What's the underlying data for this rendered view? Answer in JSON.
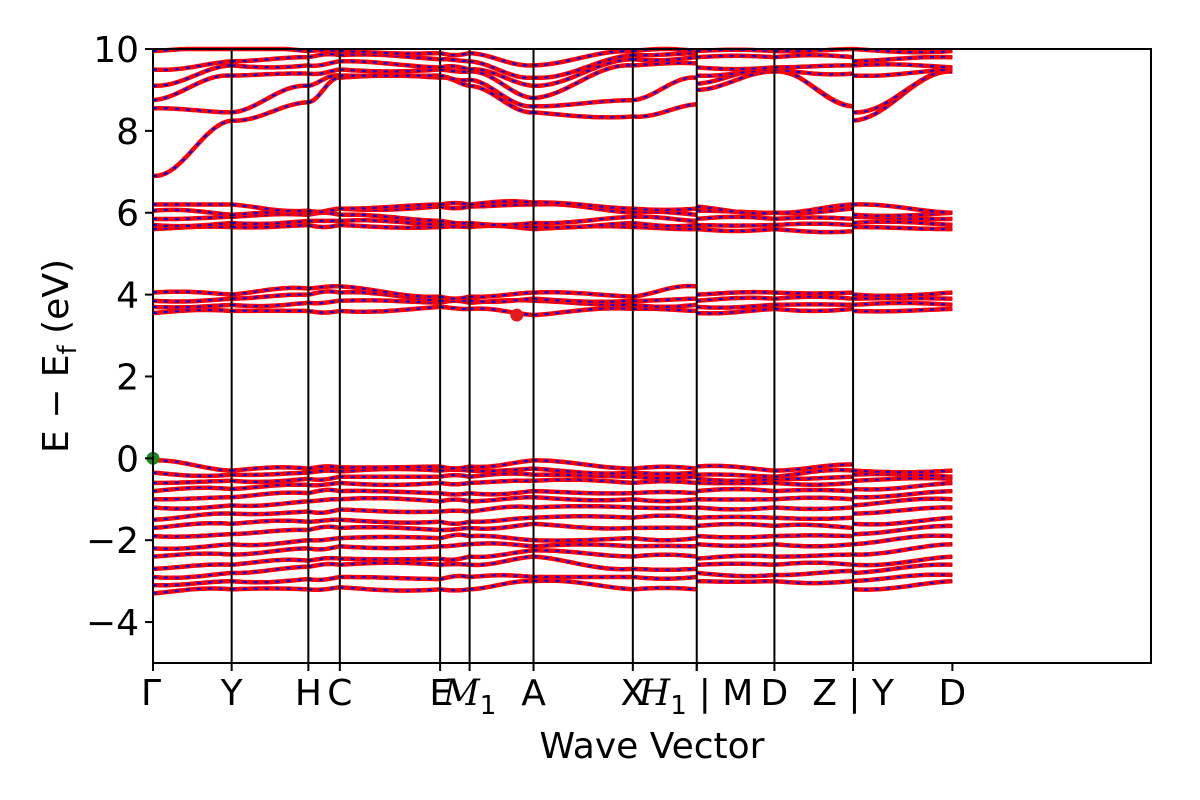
{
  "chart_data": {
    "type": "line",
    "title": "",
    "xlabel": "Wave Vector",
    "ylabel": "E − E_f (eV)",
    "ylabel_parts": {
      "main": "E − E",
      "sub": "f",
      "unit": " (eV)"
    },
    "ylim": [
      -5,
      10
    ],
    "yticks": [
      -4,
      -2,
      0,
      2,
      4,
      6,
      8,
      10
    ],
    "ytick_labels": [
      "−4",
      "−2",
      "0",
      "2",
      "4",
      "6",
      "8",
      "10"
    ],
    "xlim": [
      0,
      10.15
    ],
    "kpoints": [
      {
        "label": "Γ",
        "x": 0.0
      },
      {
        "label": "Y",
        "x": 0.8
      },
      {
        "label": "H",
        "x": 1.58
      },
      {
        "label": "C",
        "x": 1.9
      },
      {
        "label": "E",
        "x": 2.92
      },
      {
        "label": "M",
        "sub": "1",
        "x": 3.22
      },
      {
        "label": "A",
        "x": 3.87
      },
      {
        "label": "X",
        "x": 4.88
      },
      {
        "label": "H",
        "sub": "1",
        "x": 5.53
      },
      {
        "label": "| M",
        "x": 5.53
      },
      {
        "label": "D",
        "x": 6.32
      },
      {
        "label": "Z | Y",
        "x": 7.12
      },
      {
        "label": "D",
        "x": 8.13
      }
    ],
    "vertical_lines_x": [
      0.8,
      1.58,
      1.9,
      2.92,
      3.22,
      3.87,
      4.88,
      5.53,
      6.32,
      7.12
    ],
    "segments": [
      {
        "x0": 0.0,
        "x1": 0.8,
        "start": [
          -3.3,
          -3.1,
          -2.9,
          -2.7,
          -2.4,
          -2.2,
          -1.9,
          -1.7,
          -1.5,
          -1.2,
          -1.0,
          -0.8,
          -0.6,
          -0.35,
          -0.05,
          3.55,
          3.7,
          3.85,
          4.05,
          5.6,
          5.7,
          5.85,
          6.05,
          6.2,
          6.9,
          8.55,
          8.75,
          9.1,
          9.5,
          9.95
        ],
        "end": [
          -3.2,
          -3.0,
          -2.8,
          -2.6,
          -2.35,
          -2.1,
          -1.85,
          -1.6,
          -1.35,
          -1.15,
          -0.95,
          -0.75,
          -0.55,
          -0.4,
          -0.3,
          3.6,
          3.75,
          3.9,
          4.0,
          5.65,
          5.75,
          5.9,
          5.95,
          6.2,
          8.25,
          8.45,
          9.35,
          9.6,
          9.7,
          10.0
        ]
      },
      {
        "x0": 0.8,
        "x1": 1.58,
        "start": [
          -3.2,
          -3.0,
          -2.8,
          -2.6,
          -2.35,
          -2.1,
          -1.85,
          -1.6,
          -1.35,
          -1.15,
          -0.95,
          -0.75,
          -0.55,
          -0.4,
          -0.3,
          3.6,
          3.75,
          3.9,
          4.0,
          5.65,
          5.75,
          5.9,
          5.95,
          6.2,
          8.25,
          8.45,
          9.35,
          9.6,
          9.7,
          10.0
        ],
        "end": [
          -3.2,
          -2.95,
          -2.65,
          -2.5,
          -2.2,
          -2.0,
          -1.75,
          -1.55,
          -1.3,
          -1.05,
          -0.85,
          -0.65,
          -0.5,
          -0.35,
          -0.25,
          3.6,
          3.8,
          4.0,
          4.15,
          5.7,
          5.8,
          5.95,
          6.0,
          6.05,
          8.7,
          9.1,
          9.4,
          9.6,
          9.8,
          9.95
        ]
      },
      {
        "x0": 1.58,
        "x1": 1.9,
        "start": [
          -3.2,
          -2.95,
          -2.65,
          -2.5,
          -2.2,
          -2.0,
          -1.75,
          -1.55,
          -1.3,
          -1.05,
          -0.85,
          -0.65,
          -0.5,
          -0.35,
          -0.25,
          3.6,
          3.8,
          4.0,
          4.15,
          5.7,
          5.8,
          5.95,
          6.0,
          6.05,
          8.7,
          9.1,
          9.4,
          9.6,
          9.8,
          9.95
        ],
        "end": [
          -3.15,
          -2.9,
          -2.6,
          -2.45,
          -2.15,
          -1.95,
          -1.7,
          -1.5,
          -1.25,
          -1.0,
          -0.8,
          -0.6,
          -0.45,
          -0.32,
          -0.22,
          3.6,
          3.85,
          4.05,
          4.2,
          5.7,
          5.8,
          5.95,
          6.1,
          6.1,
          9.3,
          9.35,
          9.5,
          9.7,
          9.85,
          9.95
        ]
      },
      {
        "x0": 1.9,
        "x1": 2.92,
        "start": [
          -3.15,
          -2.9,
          -2.6,
          -2.45,
          -2.15,
          -1.95,
          -1.7,
          -1.5,
          -1.25,
          -1.0,
          -0.8,
          -0.6,
          -0.45,
          -0.32,
          -0.22,
          3.6,
          3.85,
          4.05,
          4.2,
          5.7,
          5.8,
          5.95,
          6.1,
          6.1,
          9.3,
          9.35,
          9.5,
          9.7,
          9.85,
          9.95
        ],
        "end": [
          -3.2,
          -2.95,
          -2.6,
          -2.45,
          -2.15,
          -1.95,
          -1.75,
          -1.55,
          -1.3,
          -1.05,
          -0.85,
          -0.6,
          -0.45,
          -0.3,
          -0.2,
          3.7,
          3.8,
          3.85,
          3.95,
          5.65,
          5.7,
          5.8,
          6.15,
          6.2,
          9.3,
          9.35,
          9.5,
          9.55,
          9.75,
          9.9
        ]
      },
      {
        "x0": 2.92,
        "x1": 3.22,
        "start": [
          -3.2,
          -2.95,
          -2.6,
          -2.45,
          -2.15,
          -1.95,
          -1.75,
          -1.55,
          -1.3,
          -1.05,
          -0.85,
          -0.6,
          -0.45,
          -0.3,
          -0.2,
          3.7,
          3.8,
          3.85,
          3.95,
          5.65,
          5.7,
          5.8,
          6.15,
          6.2,
          9.3,
          9.35,
          9.5,
          9.55,
          9.75,
          9.9
        ],
        "end": [
          -3.2,
          -2.9,
          -2.6,
          -2.4,
          -2.1,
          -1.9,
          -1.7,
          -1.55,
          -1.3,
          -1.05,
          -0.85,
          -0.6,
          -0.45,
          -0.3,
          -0.2,
          3.65,
          3.8,
          3.85,
          3.95,
          5.65,
          5.7,
          5.75,
          6.15,
          6.2,
          9.1,
          9.25,
          9.45,
          9.5,
          9.7,
          9.9
        ]
      },
      {
        "x0": 3.22,
        "x1": 3.87,
        "start": [
          -3.2,
          -2.9,
          -2.6,
          -2.4,
          -2.1,
          -1.9,
          -1.7,
          -1.55,
          -1.3,
          -1.05,
          -0.85,
          -0.6,
          -0.45,
          -0.3,
          -0.2,
          3.65,
          3.8,
          3.85,
          3.95,
          5.65,
          5.7,
          5.75,
          6.15,
          6.2,
          9.1,
          9.25,
          9.45,
          9.5,
          9.7,
          9.9
        ],
        "end": [
          -3.0,
          -2.9,
          -2.4,
          -2.25,
          -2.15,
          -2.0,
          -1.6,
          -1.45,
          -1.2,
          -0.95,
          -0.8,
          -0.55,
          -0.4,
          -0.25,
          -0.05,
          3.5,
          3.85,
          3.9,
          4.05,
          5.6,
          5.65,
          5.75,
          6.2,
          6.25,
          8.45,
          8.6,
          8.8,
          9.1,
          9.3,
          9.6
        ]
      },
      {
        "x0": 3.87,
        "x1": 4.88,
        "start": [
          -3.0,
          -2.9,
          -2.4,
          -2.25,
          -2.15,
          -2.0,
          -1.6,
          -1.45,
          -1.2,
          -0.95,
          -0.8,
          -0.55,
          -0.4,
          -0.25,
          -0.05,
          3.5,
          3.85,
          3.9,
          4.05,
          5.6,
          5.65,
          5.75,
          6.2,
          6.25,
          8.45,
          8.6,
          8.8,
          9.1,
          9.3,
          9.6
        ],
        "end": [
          -3.2,
          -2.9,
          -2.7,
          -2.4,
          -2.15,
          -1.95,
          -1.7,
          -1.45,
          -1.2,
          -1.0,
          -0.85,
          -0.6,
          -0.45,
          -0.35,
          -0.25,
          3.65,
          3.75,
          3.85,
          3.95,
          5.65,
          5.75,
          5.9,
          6.0,
          6.1,
          8.35,
          8.75,
          9.6,
          9.75,
          9.85,
          9.95
        ]
      },
      {
        "x0": 4.88,
        "x1": 5.53,
        "start": [
          -3.2,
          -2.9,
          -2.7,
          -2.4,
          -2.15,
          -1.95,
          -1.7,
          -1.45,
          -1.2,
          -1.0,
          -0.85,
          -0.6,
          -0.45,
          -0.35,
          -0.25,
          3.65,
          3.75,
          3.85,
          3.95,
          5.65,
          5.75,
          5.9,
          6.0,
          6.1,
          8.35,
          8.75,
          9.6,
          9.75,
          9.85,
          9.95
        ],
        "end": [
          -3.2,
          -2.9,
          -2.7,
          -2.4,
          -2.15,
          -1.95,
          -1.7,
          -1.45,
          -1.2,
          -1.0,
          -0.85,
          -0.6,
          -0.45,
          -0.35,
          -0.25,
          3.6,
          3.75,
          3.9,
          4.2,
          5.6,
          5.7,
          5.8,
          5.95,
          6.1,
          8.65,
          9.3,
          9.65,
          9.8,
          9.9,
          9.95
        ]
      },
      {
        "x0": 5.53,
        "x1": 6.32,
        "start": [
          -3.0,
          -2.8,
          -2.6,
          -2.45,
          -2.1,
          -1.9,
          -1.65,
          -1.45,
          -1.2,
          -1.0,
          -0.8,
          -0.6,
          -0.5,
          -0.4,
          -0.2,
          3.55,
          3.7,
          3.85,
          4.0,
          5.6,
          5.7,
          5.85,
          6.05,
          6.15,
          9.0,
          9.15,
          9.35,
          9.55,
          9.8,
          9.95
        ],
        "end": [
          -3.0,
          -2.85,
          -2.6,
          -2.4,
          -2.1,
          -1.9,
          -1.65,
          -1.45,
          -1.2,
          -1.0,
          -0.8,
          -0.6,
          -0.5,
          -0.45,
          -0.3,
          3.65,
          3.75,
          3.9,
          4.05,
          5.6,
          5.7,
          5.85,
          6.0,
          6.0,
          9.45,
          9.5,
          9.5,
          9.55,
          9.8,
          9.95
        ]
      },
      {
        "x0": 6.32,
        "x1": 7.12,
        "start": [
          -3.0,
          -2.85,
          -2.6,
          -2.4,
          -2.1,
          -1.9,
          -1.65,
          -1.45,
          -1.2,
          -1.0,
          -0.8,
          -0.6,
          -0.5,
          -0.45,
          -0.3,
          3.65,
          3.75,
          3.9,
          4.05,
          5.6,
          5.7,
          5.85,
          6.0,
          6.0,
          9.45,
          9.5,
          9.5,
          9.55,
          9.8,
          9.95
        ],
        "end": [
          -3.0,
          -2.75,
          -2.6,
          -2.35,
          -2.1,
          -1.9,
          -1.7,
          -1.45,
          -1.2,
          -1.0,
          -0.8,
          -0.6,
          -0.45,
          -0.3,
          -0.15,
          3.65,
          3.75,
          3.9,
          4.05,
          5.55,
          5.7,
          5.85,
          6.1,
          6.2,
          8.6,
          8.6,
          9.4,
          9.6,
          9.8,
          10.0
        ]
      },
      {
        "x0": 7.12,
        "x1": 8.13,
        "start": [
          -3.2,
          -3.0,
          -2.8,
          -2.6,
          -2.35,
          -2.1,
          -1.85,
          -1.6,
          -1.35,
          -1.15,
          -0.95,
          -0.75,
          -0.55,
          -0.4,
          -0.3,
          3.6,
          3.75,
          3.9,
          4.0,
          5.65,
          5.75,
          5.9,
          5.95,
          6.2,
          8.25,
          8.45,
          9.35,
          9.6,
          9.7,
          10.0
        ],
        "end": [
          -3.0,
          -2.85,
          -2.6,
          -2.4,
          -2.1,
          -1.9,
          -1.65,
          -1.45,
          -1.2,
          -1.0,
          -0.8,
          -0.6,
          -0.5,
          -0.45,
          -0.3,
          3.65,
          3.75,
          3.9,
          4.05,
          5.6,
          5.7,
          5.85,
          6.0,
          6.0,
          9.45,
          9.5,
          9.5,
          9.55,
          9.8,
          9.95
        ]
      }
    ],
    "markers": [
      {
        "name": "vbm",
        "x": 0.0,
        "y": 0.0,
        "color": "#1a8a1a"
      },
      {
        "name": "cbm",
        "x": 3.7,
        "y": 3.5,
        "color": "#e41a1c"
      }
    ],
    "colors": {
      "band_primary": "#ff0000",
      "band_secondary": "#0000ff",
      "axes": "#000000"
    }
  }
}
